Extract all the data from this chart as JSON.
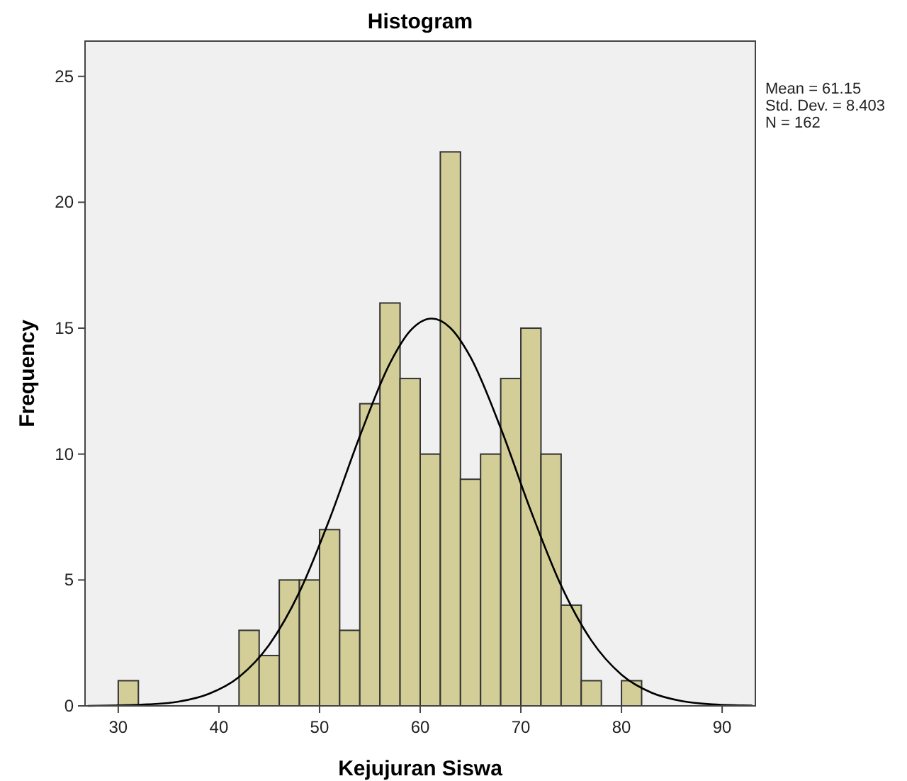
{
  "chart_data": {
    "type": "histogram",
    "title": "Histogram",
    "xlabel": "Kejujuran Siswa",
    "ylabel": "Frequency",
    "bins": [
      30,
      32,
      34,
      36,
      38,
      40,
      42,
      44,
      46,
      48,
      50,
      52,
      54,
      56,
      58,
      60,
      62,
      64,
      66,
      68,
      70,
      72,
      74,
      76,
      78,
      80,
      82
    ],
    "values": [
      1,
      0,
      0,
      0,
      0,
      0,
      3,
      2,
      5,
      5,
      7,
      3,
      12,
      16,
      13,
      10,
      22,
      9,
      10,
      13,
      15,
      10,
      4,
      1,
      0,
      1
    ],
    "color": "#d3ce97",
    "series": [
      {
        "type": "line",
        "color": "#000000",
        "x": [
          27,
          30,
          33,
          36,
          39,
          42,
          45,
          48,
          51,
          54,
          57,
          59,
          61.15,
          63,
          65,
          68,
          71,
          74,
          77,
          80,
          83,
          86,
          89,
          92,
          93
        ],
        "values": [
          0,
          0.02,
          0.06,
          0.17,
          0.48,
          1.15,
          2.43,
          4.52,
          7.42,
          10.71,
          13.61,
          14.89,
          15.38,
          15.01,
          13.85,
          11.03,
          7.74,
          4.78,
          2.6,
          1.24,
          0.52,
          0.19,
          0.06,
          0.02,
          0.01
        ]
      }
    ],
    "xlim": [
      26.7,
      93.3
    ],
    "ylim": [
      0,
      26.4
    ],
    "xticks": [
      30,
      40,
      50,
      60,
      70,
      80,
      90
    ],
    "yticks": [
      0,
      5,
      10,
      15,
      20,
      25
    ],
    "grid": false,
    "annotations": [
      "Mean = 61.15",
      "Std. Dev. = 8.403",
      "N = 162"
    ]
  }
}
